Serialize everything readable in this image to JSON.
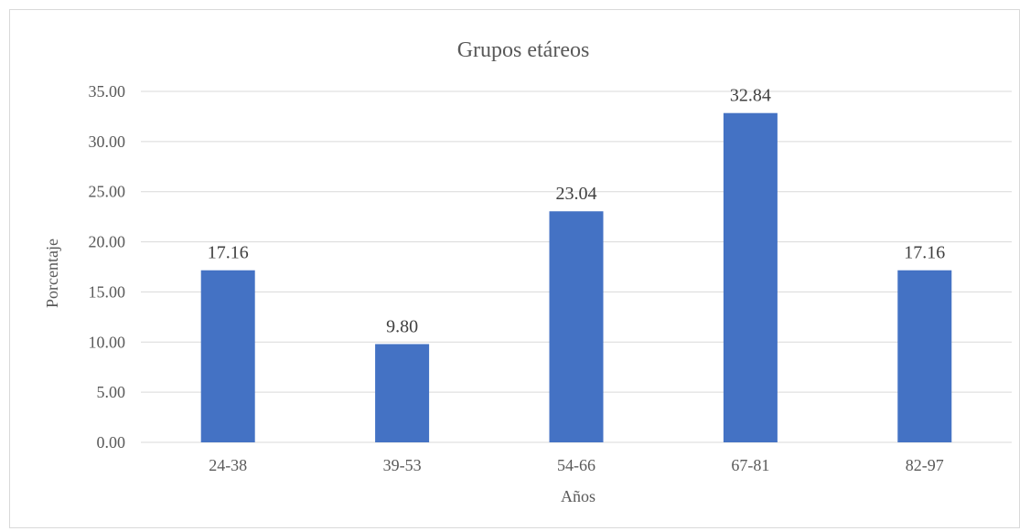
{
  "chart_data": {
    "type": "bar",
    "title": "Grupos etáreos",
    "xlabel": "Años",
    "ylabel": "Porcentaje",
    "categories": [
      "24-38",
      "39-53",
      "54-66",
      "67-81",
      "82-97"
    ],
    "values": [
      17.16,
      9.8,
      23.04,
      32.84,
      17.16
    ],
    "data_labels": [
      "17.16",
      "9.80",
      "23.04",
      "32.84",
      "17.16"
    ],
    "ylim": [
      0,
      35
    ],
    "yticks": [
      0,
      5,
      10,
      15,
      20,
      25,
      30,
      35
    ],
    "ytick_labels": [
      "0.00",
      "5.00",
      "10.00",
      "15.00",
      "20.00",
      "25.00",
      "30.00",
      "35.00"
    ],
    "grid": true,
    "legend": "none",
    "bar_color": "#4472c4"
  }
}
